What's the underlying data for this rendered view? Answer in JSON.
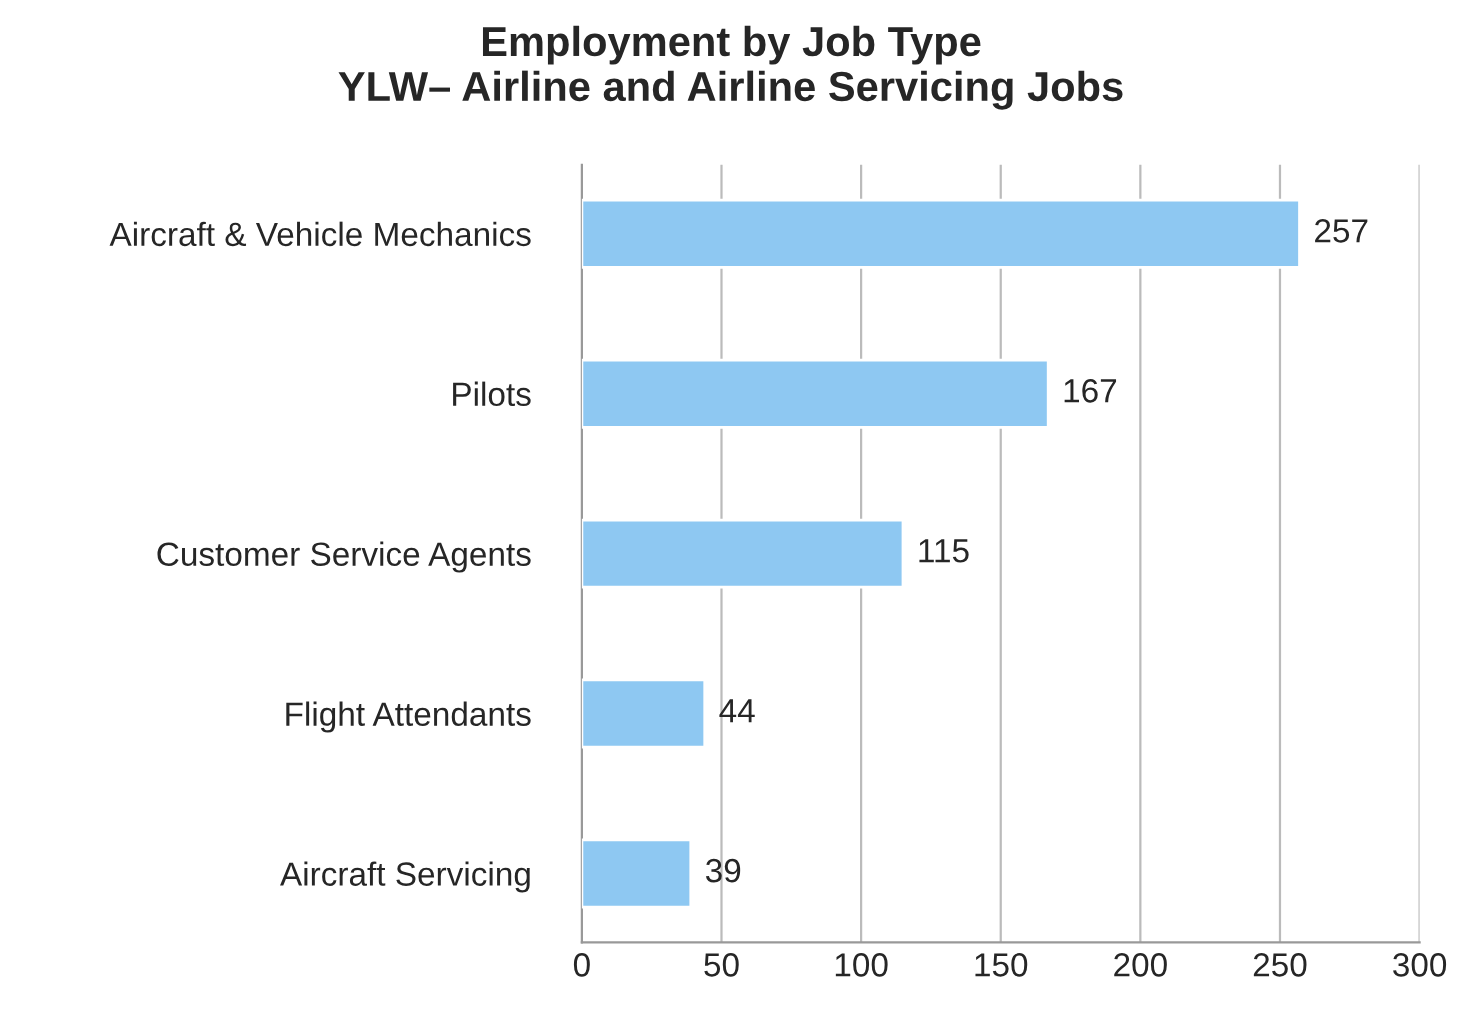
{
  "chart_data": {
    "type": "bar",
    "orientation": "horizontal",
    "title": "Employment by Job Type\nYLW– Airline and Airline Servicing Jobs",
    "categories": [
      "Aircraft & Vehicle Mechanics",
      "Pilots",
      "Customer Service Agents",
      "Flight Attendants",
      "Aircraft Servicing"
    ],
    "values": [
      257,
      167,
      115,
      44,
      39
    ],
    "color": "#8ec8f2",
    "xlim": [
      0,
      300
    ],
    "xticks": [
      0,
      50,
      100,
      150,
      200,
      250,
      300
    ],
    "grid": "x",
    "data_labels": true
  }
}
